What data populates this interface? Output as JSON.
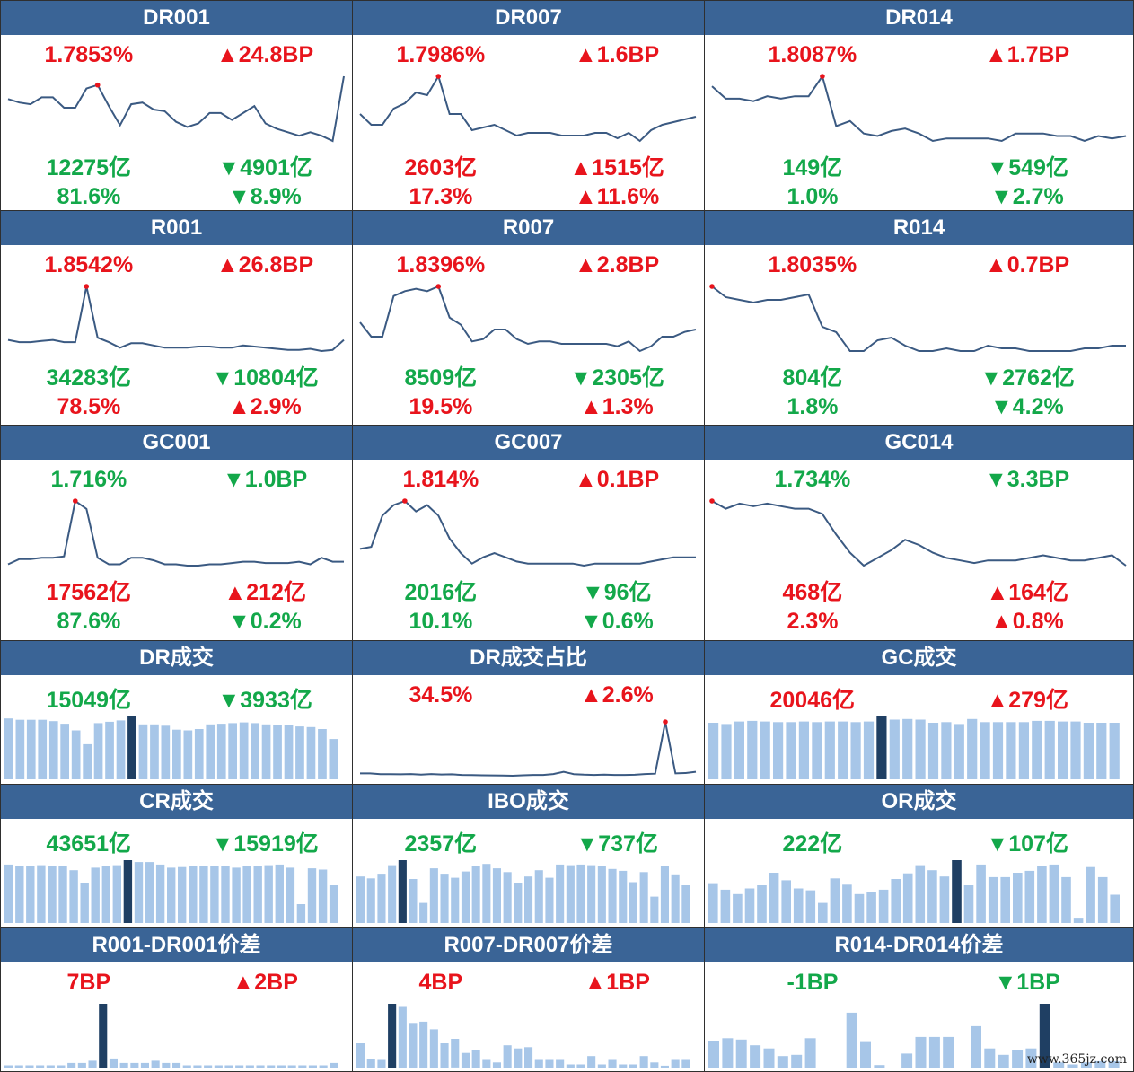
{
  "colors": {
    "header_bg": "#3a6496",
    "up": "#e8141c",
    "down": "#13a84a",
    "line": "#3b5a82",
    "bar": "#a7c6e8",
    "bar_highlight": "#1f3f63",
    "marker": "#e8141c"
  },
  "watermark": "www.365jz.com",
  "panels": [
    {
      "title": "DR001",
      "kind": "line",
      "rate": "1.7853%",
      "rate_color": "up",
      "change": "▲24.8BP",
      "change_color": "up",
      "volume": "12275亿",
      "volume_color": "down",
      "vol_change": "▼4901亿",
      "vol_change_color": "down",
      "share": "81.6%",
      "share_color": "down",
      "share_change": "▼8.9%",
      "share_change_color": "down",
      "chart_data": {
        "type": "line",
        "values": [
          1.66,
          1.64,
          1.63,
          1.67,
          1.67,
          1.61,
          1.61,
          1.72,
          1.74,
          1.62,
          1.51,
          1.63,
          1.64,
          1.6,
          1.59,
          1.53,
          1.5,
          1.52,
          1.58,
          1.58,
          1.54,
          1.58,
          1.62,
          1.52,
          1.49,
          1.47,
          1.45,
          1.47,
          1.45,
          1.42,
          1.79
        ],
        "highlight": 8
      }
    },
    {
      "title": "DR007",
      "kind": "line",
      "rate": "1.7986%",
      "rate_color": "up",
      "change": "▲1.6BP",
      "change_color": "up",
      "volume": "2603亿",
      "volume_color": "up",
      "vol_change": "▲1515亿",
      "vol_change_color": "up",
      "share": "17.3%",
      "share_color": "up",
      "share_change": "▲11.6%",
      "share_change_color": "up",
      "chart_data": {
        "type": "line",
        "values": [
          1.66,
          1.62,
          1.62,
          1.68,
          1.7,
          1.74,
          1.73,
          1.8,
          1.66,
          1.66,
          1.6,
          1.61,
          1.62,
          1.6,
          1.58,
          1.59,
          1.59,
          1.59,
          1.58,
          1.58,
          1.58,
          1.59,
          1.59,
          1.57,
          1.59,
          1.56,
          1.6,
          1.62,
          1.63,
          1.64,
          1.65
        ],
        "highlight": 7
      }
    },
    {
      "title": "DR014",
      "kind": "line",
      "rate": "1.8087%",
      "rate_color": "up",
      "change": "▲1.7BP",
      "change_color": "up",
      "volume": "149亿",
      "volume_color": "down",
      "vol_change": "▼549亿",
      "vol_change_color": "down",
      "share": "1.0%",
      "share_color": "down",
      "share_change": "▼2.7%",
      "share_change_color": "down",
      "chart_data": {
        "type": "line",
        "values": [
          1.77,
          1.72,
          1.72,
          1.71,
          1.73,
          1.72,
          1.73,
          1.73,
          1.81,
          1.61,
          1.63,
          1.58,
          1.57,
          1.59,
          1.6,
          1.58,
          1.55,
          1.56,
          1.56,
          1.56,
          1.56,
          1.55,
          1.58,
          1.58,
          1.58,
          1.57,
          1.57,
          1.55,
          1.57,
          1.56,
          1.57
        ],
        "highlight": 8
      }
    },
    {
      "title": "R001",
      "kind": "line",
      "rate": "1.8542%",
      "rate_color": "up",
      "change": "▲26.8BP",
      "change_color": "up",
      "volume": "34283亿",
      "volume_color": "down",
      "vol_change": "▼10804亿",
      "vol_change_color": "down",
      "share": "78.5%",
      "share_color": "up",
      "share_change": "▲2.9%",
      "share_change_color": "up",
      "chart_data": {
        "type": "line",
        "values": [
          1.62,
          1.6,
          1.6,
          1.61,
          1.62,
          1.6,
          1.6,
          2.1,
          1.64,
          1.6,
          1.55,
          1.59,
          1.59,
          1.57,
          1.55,
          1.55,
          1.55,
          1.56,
          1.56,
          1.55,
          1.55,
          1.57,
          1.56,
          1.55,
          1.54,
          1.53,
          1.53,
          1.54,
          1.52,
          1.53,
          1.62
        ],
        "highlight": 7
      }
    },
    {
      "title": "R007",
      "kind": "line",
      "rate": "1.8396%",
      "rate_color": "up",
      "change": "▲2.8BP",
      "change_color": "up",
      "volume": "8509亿",
      "volume_color": "down",
      "vol_change": "▼2305亿",
      "vol_change_color": "down",
      "share": "19.5%",
      "share_color": "up",
      "share_change": "▲1.3%",
      "share_change_color": "up",
      "chart_data": {
        "type": "line",
        "values": [
          1.68,
          1.62,
          1.62,
          1.79,
          1.81,
          1.82,
          1.81,
          1.83,
          1.7,
          1.67,
          1.6,
          1.61,
          1.65,
          1.65,
          1.61,
          1.59,
          1.6,
          1.6,
          1.59,
          1.59,
          1.59,
          1.59,
          1.59,
          1.58,
          1.6,
          1.56,
          1.58,
          1.62,
          1.62,
          1.64,
          1.65
        ],
        "highlight": 7
      }
    },
    {
      "title": "R014",
      "kind": "line",
      "rate": "1.8035%",
      "rate_color": "up",
      "change": "▲0.7BP",
      "change_color": "up",
      "volume": "804亿",
      "volume_color": "down",
      "vol_change": "▼2762亿",
      "vol_change_color": "down",
      "share": "1.8%",
      "share_color": "down",
      "share_change": "▼4.2%",
      "share_change_color": "down",
      "chart_data": {
        "type": "line",
        "values": [
          1.8,
          1.76,
          1.75,
          1.74,
          1.75,
          1.75,
          1.76,
          1.77,
          1.65,
          1.63,
          1.56,
          1.56,
          1.6,
          1.61,
          1.58,
          1.56,
          1.56,
          1.57,
          1.56,
          1.56,
          1.58,
          1.57,
          1.57,
          1.56,
          1.56,
          1.56,
          1.56,
          1.57,
          1.57,
          1.58,
          1.58
        ],
        "highlight": 0
      }
    },
    {
      "title": "GC001",
      "kind": "line",
      "rate": "1.716%",
      "rate_color": "down",
      "change": "▼1.0BP",
      "change_color": "down",
      "volume": "17562亿",
      "volume_color": "up",
      "vol_change": "▲212亿",
      "vol_change_color": "up",
      "share": "87.6%",
      "share_color": "down",
      "share_change": "▼0.2%",
      "share_change_color": "down",
      "chart_data": {
        "type": "line",
        "values": [
          1.5,
          1.54,
          1.54,
          1.55,
          1.55,
          1.56,
          1.98,
          1.92,
          1.55,
          1.5,
          1.5,
          1.55,
          1.55,
          1.53,
          1.5,
          1.5,
          1.49,
          1.49,
          1.5,
          1.5,
          1.51,
          1.52,
          1.52,
          1.51,
          1.51,
          1.51,
          1.52,
          1.5,
          1.55,
          1.52,
          1.52
        ],
        "highlight": 6
      }
    },
    {
      "title": "GC007",
      "kind": "line",
      "rate": "1.814%",
      "rate_color": "up",
      "change": "▲0.1BP",
      "change_color": "up",
      "volume": "2016亿",
      "volume_color": "down",
      "vol_change": "▼96亿",
      "vol_change_color": "down",
      "share": "10.1%",
      "share_color": "down",
      "share_change": "▼0.6%",
      "share_change_color": "down",
      "chart_data": {
        "type": "line",
        "values": [
          1.58,
          1.59,
          1.74,
          1.79,
          1.81,
          1.76,
          1.79,
          1.74,
          1.63,
          1.56,
          1.51,
          1.54,
          1.56,
          1.54,
          1.52,
          1.51,
          1.51,
          1.51,
          1.51,
          1.51,
          1.5,
          1.51,
          1.51,
          1.51,
          1.51,
          1.51,
          1.52,
          1.53,
          1.54,
          1.54,
          1.54
        ],
        "highlight": 4
      }
    },
    {
      "title": "GC014",
      "kind": "line",
      "rate": "1.734%",
      "rate_color": "down",
      "change": "▼3.3BP",
      "change_color": "down",
      "volume": "468亿",
      "volume_color": "up",
      "vol_change": "▲164亿",
      "vol_change_color": "up",
      "share": "2.3%",
      "share_color": "up",
      "share_change": "▲0.8%",
      "share_change_color": "up",
      "chart_data": {
        "type": "line",
        "values": [
          1.78,
          1.75,
          1.77,
          1.76,
          1.77,
          1.76,
          1.75,
          1.75,
          1.73,
          1.65,
          1.58,
          1.53,
          1.56,
          1.59,
          1.63,
          1.61,
          1.58,
          1.56,
          1.55,
          1.54,
          1.55,
          1.55,
          1.55,
          1.56,
          1.57,
          1.56,
          1.55,
          1.55,
          1.56,
          1.57,
          1.53
        ],
        "highlight": 0
      }
    },
    {
      "title": "DR成交",
      "kind": "bar",
      "rate": "15049亿",
      "rate_color": "down",
      "change": "▼3933亿",
      "change_color": "down",
      "chart_data": {
        "type": "bar",
        "values": [
          92,
          90,
          90,
          90,
          88,
          84,
          74,
          53,
          85,
          87,
          89,
          95,
          83,
          83,
          81,
          75,
          74,
          76,
          83,
          84,
          85,
          86,
          85,
          83,
          82,
          82,
          80,
          79,
          76,
          61
        ],
        "highlight": 11
      }
    },
    {
      "title": "DR成交占比",
      "kind": "line",
      "rate": "34.5%",
      "rate_color": "up",
      "change": "▲2.6%",
      "change_color": "up",
      "chart_data": {
        "type": "line",
        "values": [
          2,
          2,
          1.5,
          1.5,
          1.4,
          1.6,
          1.2,
          1.6,
          1.3,
          1.4,
          1.0,
          0.9,
          0.8,
          0.7,
          0.6,
          0.5,
          0.8,
          1.0,
          1.0,
          1.6,
          3.0,
          1.5,
          1.2,
          1.0,
          1.2,
          1.0,
          1.0,
          1.1,
          1.6,
          1.8,
          34.5,
          2.0,
          2.2,
          3.0
        ],
        "highlight": 30
      }
    },
    {
      "title": "GC成交",
      "kind": "bar",
      "rate": "20046亿",
      "rate_color": "up",
      "change": "▲279亿",
      "change_color": "up",
      "chart_data": {
        "type": "bar",
        "values": [
          90,
          88,
          92,
          93,
          92,
          91,
          91,
          92,
          91,
          92,
          92,
          91,
          92,
          100,
          95,
          96,
          95,
          90,
          91,
          88,
          96,
          91,
          91,
          91,
          91,
          93,
          93,
          92,
          92,
          90,
          90,
          90
        ],
        "highlight": 13
      }
    },
    {
      "title": "CR成交",
      "kind": "bar",
      "rate": "43651亿",
      "rate_color": "down",
      "change": "▼15919亿",
      "change_color": "down",
      "chart_data": {
        "type": "bar",
        "values": [
          93,
          91,
          91,
          92,
          91,
          90,
          84,
          63,
          88,
          91,
          92,
          100,
          97,
          97,
          93,
          88,
          89,
          90,
          91,
          90,
          90,
          88,
          90,
          91,
          92,
          93,
          88,
          30,
          87,
          85,
          60
        ],
        "highlight": 11
      }
    },
    {
      "title": "IBO成交",
      "kind": "bar",
      "rate": "2357亿",
      "rate_color": "down",
      "change": "▼737亿",
      "change_color": "down",
      "chart_data": {
        "type": "bar",
        "values": [
          74,
          71,
          77,
          92,
          100,
          70,
          32,
          87,
          77,
          72,
          82,
          91,
          94,
          87,
          81,
          64,
          74,
          84,
          72,
          93,
          92,
          93,
          92,
          90,
          86,
          83,
          65,
          81,
          42,
          90,
          76,
          60
        ],
        "highlight": 4
      }
    },
    {
      "title": "OR成交",
      "kind": "bar",
      "rate": "222亿",
      "rate_color": "down",
      "change": "▼107亿",
      "change_color": "down",
      "chart_data": {
        "type": "bar",
        "values": [
          62,
          53,
          46,
          55,
          60,
          80,
          68,
          55,
          52,
          32,
          71,
          61,
          46,
          50,
          53,
          70,
          79,
          92,
          84,
          74,
          100,
          60,
          93,
          73,
          73,
          80,
          83,
          90,
          93,
          73,
          7,
          89,
          73,
          45
        ],
        "highlight": 20
      }
    },
    {
      "title": "R001-DR001价差",
      "kind": "bar",
      "rate": "7BP",
      "rate_color": "up",
      "change": "▲2BP",
      "change_color": "up",
      "chart_data": {
        "type": "bar",
        "values": [
          1,
          1,
          1,
          1,
          1,
          1,
          2,
          2,
          3,
          28,
          4,
          2,
          2,
          2,
          3,
          2,
          2,
          1,
          1,
          1,
          1,
          1,
          1,
          1,
          1,
          1,
          1,
          1,
          1,
          1,
          1,
          2
        ],
        "highlight": 9
      }
    },
    {
      "title": "R007-DR007价差",
      "kind": "bar",
      "rate": "4BP",
      "rate_color": "up",
      "change": "▲1BP",
      "change_color": "up",
      "chart_data": {
        "type": "bar",
        "values": [
          38,
          14,
          12,
          100,
          95,
          70,
          72,
          60,
          38,
          45,
          23,
          27,
          12,
          8,
          35,
          30,
          32,
          12,
          12,
          12,
          5,
          5,
          18,
          5,
          12,
          5,
          5,
          18,
          8,
          3,
          12,
          12
        ],
        "highlight": 3
      }
    },
    {
      "title": "R014-DR014价差",
      "kind": "bar",
      "rate": "-1BP",
      "rate_color": "down",
      "change": "▼1BP",
      "change_color": "down",
      "chart_data": {
        "type": "bar",
        "values": [
          42,
          46,
          44,
          35,
          30,
          18,
          20,
          46,
          0,
          0,
          86,
          40,
          4,
          0,
          22,
          48,
          48,
          48,
          0,
          65,
          30,
          20,
          28,
          30,
          100,
          8,
          5,
          8,
          10,
          10
        ],
        "highlight": 24
      }
    }
  ]
}
